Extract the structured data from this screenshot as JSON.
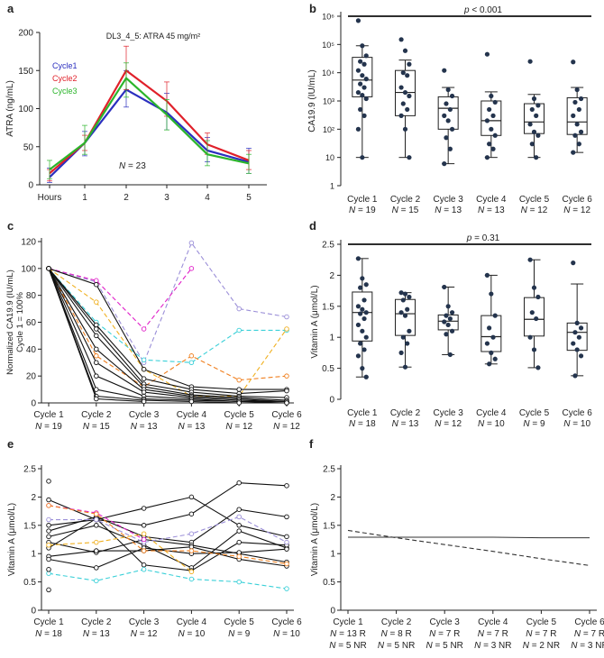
{
  "panel_labels": [
    "a",
    "b",
    "c",
    "d",
    "e",
    "f"
  ],
  "chart_data": [
    {
      "panel": "a",
      "type": "line",
      "title": "DL3_4_5: ATRA 45 mg/m²",
      "ylabel": "ATRA (ng/mL)",
      "xlabel": "",
      "x_ticks": [
        "Hours",
        "1",
        "2",
        "3",
        "4",
        "5"
      ],
      "x_values": [
        0.5,
        1,
        2,
        3,
        4,
        5
      ],
      "ylim": [
        0,
        200
      ],
      "y_ticks": [
        0,
        50,
        100,
        150,
        200
      ],
      "annotation": "N = 23",
      "series": [
        {
          "name": "Cycle1",
          "color": "#2b2fbf",
          "values": [
            10,
            55,
            125,
            95,
            45,
            30
          ],
          "err": [
            [
              3,
              22
            ],
            [
              38,
              70
            ],
            [
              102,
              150
            ],
            [
              72,
              120
            ],
            [
              30,
              62
            ],
            [
              15,
              48
            ]
          ]
        },
        {
          "name": "Cycle2",
          "color": "#e0202a",
          "values": [
            15,
            55,
            150,
            110,
            53,
            32
          ],
          "err": [
            [
              5,
              20
            ],
            [
              45,
              65
            ],
            [
              125,
              182
            ],
            [
              90,
              135
            ],
            [
              40,
              68
            ],
            [
              20,
              45
            ]
          ]
        },
        {
          "name": "Cycle3",
          "color": "#2bb52b",
          "values": [
            20,
            55,
            140,
            92,
            40,
            28
          ],
          "err": [
            [
              8,
              32
            ],
            [
              40,
              78
            ],
            [
              115,
              160
            ],
            [
              72,
              112
            ],
            [
              25,
              58
            ],
            [
              15,
              40
            ]
          ]
        }
      ]
    },
    {
      "panel": "b",
      "type": "box",
      "ylabel": "CA19.9 (IU/mL)",
      "yscale": "log",
      "ylim": [
        1,
        1000000
      ],
      "y_ticks": [
        "1",
        "10",
        "10²",
        "10³",
        "10⁴",
        "10⁵",
        "10⁶"
      ],
      "categories": [
        "Cycle 1",
        "Cycle 2",
        "Cycle 3",
        "Cycle 4",
        "Cycle 5",
        "Cycle 6"
      ],
      "n_labels": [
        "N = 19",
        "N = 15",
        "N = 13",
        "N = 13",
        "N = 12",
        "N = 12"
      ],
      "significance": "p < 0.001",
      "boxes": [
        {
          "min": 10,
          "q1": 1400,
          "median": 5500,
          "q3": 35000,
          "max": 90000
        },
        {
          "min": 10,
          "q1": 300,
          "median": 2000,
          "q3": 12000,
          "max": 28000
        },
        {
          "min": 6,
          "q1": 100,
          "median": 550,
          "q3": 1400,
          "max": 3000
        },
        {
          "min": 10,
          "q1": 60,
          "median": 200,
          "q3": 1000,
          "max": 2100
        },
        {
          "min": 10,
          "q1": 70,
          "median": 180,
          "q3": 800,
          "max": 1700
        },
        {
          "min": 15,
          "q1": 65,
          "median": 180,
          "q3": 1300,
          "max": 3000
        }
      ],
      "points": [
        [
          700000,
          90000,
          40000,
          25000,
          20000,
          12000,
          8000,
          6000,
          4000,
          3000,
          2000,
          1600,
          1200,
          500,
          300,
          100,
          10
        ],
        [
          150000,
          60000,
          20000,
          10000,
          8000,
          3000,
          2000,
          1500,
          800,
          500,
          300,
          100,
          10
        ],
        [
          12000,
          2500,
          1500,
          800,
          500,
          300,
          200,
          100,
          50,
          20,
          6
        ],
        [
          45000,
          1500,
          900,
          500,
          300,
          200,
          100,
          60,
          30,
          20,
          10
        ],
        [
          25000,
          1200,
          700,
          500,
          300,
          150,
          80,
          60,
          30,
          10
        ],
        [
          24000,
          2500,
          1200,
          900,
          500,
          300,
          150,
          80,
          60,
          30,
          15
        ]
      ]
    },
    {
      "panel": "c",
      "type": "line",
      "ylabel": "Normalized CA19.9 (IU/mL) Cycle 1 = 100%",
      "ylabel_lines": [
        "Normalized CA19.9 (IU/mL)",
        "Cycle 1 = 100%"
      ],
      "ylim": [
        0,
        120
      ],
      "y_ticks": [
        0,
        20,
        40,
        60,
        80,
        100,
        120
      ],
      "categories": [
        "Cycle 1",
        "Cycle 2",
        "Cycle 3",
        "Cycle 4",
        "Cycle 5",
        "Cycle 6"
      ],
      "n_labels": [
        "N = 19",
        "N = 15",
        "N = 13",
        "N = 13",
        "N = 12",
        "N = 12"
      ],
      "series": [
        {
          "color": "#9b8fd8",
          "dashed": true,
          "values": [
            100,
            90,
            30,
            119,
            70,
            64
          ]
        },
        {
          "color": "#e020c8",
          "dashed": true,
          "values": [
            100,
            91,
            55,
            100,
            null,
            null
          ]
        },
        {
          "color": "#3ad0d8",
          "dashed": true,
          "values": [
            100,
            60,
            32,
            30,
            54,
            54
          ]
        },
        {
          "color": "#f0b020",
          "dashed": true,
          "values": [
            100,
            75,
            25,
            5,
            5,
            55
          ]
        },
        {
          "color": "#f08020",
          "dashed": true,
          "values": [
            100,
            35,
            12,
            35,
            17,
            20
          ]
        },
        {
          "color": "#111111",
          "dashed": false,
          "values": [
            100,
            88,
            25,
            12,
            10,
            10
          ]
        },
        {
          "color": "#111111",
          "dashed": false,
          "values": [
            100,
            58,
            18,
            10,
            7,
            9
          ]
        },
        {
          "color": "#111111",
          "dashed": false,
          "values": [
            100,
            55,
            14,
            8,
            5,
            4
          ]
        },
        {
          "color": "#111111",
          "dashed": false,
          "values": [
            100,
            50,
            12,
            6,
            4,
            2
          ]
        },
        {
          "color": "#111111",
          "dashed": false,
          "values": [
            100,
            40,
            10,
            5,
            3,
            1
          ]
        },
        {
          "color": "#111111",
          "dashed": false,
          "values": [
            100,
            30,
            8,
            4,
            2,
            1
          ]
        },
        {
          "color": "#111111",
          "dashed": false,
          "values": [
            100,
            20,
            5,
            3,
            1,
            1
          ]
        },
        {
          "color": "#111111",
          "dashed": false,
          "values": [
            100,
            10,
            3,
            2,
            1,
            0
          ]
        },
        {
          "color": "#111111",
          "dashed": false,
          "values": [
            100,
            5,
            2,
            1,
            0,
            0
          ]
        },
        {
          "color": "#111111",
          "dashed": false,
          "values": [
            100,
            3,
            1,
            null,
            null,
            null
          ]
        }
      ]
    },
    {
      "panel": "d",
      "type": "box",
      "ylabel": "Vitamin A (μmol/L)",
      "ylim": [
        0,
        2.5
      ],
      "y_ticks": [
        0,
        0.5,
        1,
        1.5,
        2,
        2.5
      ],
      "categories": [
        "Cycle 1",
        "Cycle 2",
        "Cycle 3",
        "Cycle 4",
        "Cycle 5",
        "Cycle 6"
      ],
      "n_labels": [
        "N = 18",
        "N = 13",
        "N = 12",
        "N = 10",
        "N = 9",
        "N = 10"
      ],
      "significance": "p = 0.31",
      "boxes": [
        {
          "min": 0.36,
          "q1": 0.94,
          "median": 1.4,
          "q3": 1.73,
          "max": 2.27
        },
        {
          "min": 0.52,
          "q1": 1.03,
          "median": 1.38,
          "q3": 1.61,
          "max": 1.72
        },
        {
          "min": 0.72,
          "q1": 1.12,
          "median": 1.26,
          "q3": 1.36,
          "max": 1.81
        },
        {
          "min": 0.57,
          "q1": 0.77,
          "median": 1.01,
          "q3": 1.35,
          "max": 2.0
        },
        {
          "min": 0.51,
          "q1": 1.02,
          "median": 1.29,
          "q3": 1.64,
          "max": 2.25
        },
        {
          "min": 0.38,
          "q1": 0.79,
          "median": 1.08,
          "q3": 1.23,
          "max": 1.86
        }
      ],
      "points": [
        [
          2.27,
          1.95,
          1.85,
          1.8,
          1.6,
          1.5,
          1.45,
          1.4,
          1.38,
          1.3,
          1.2,
          1.1,
          1.0,
          0.9,
          0.8,
          0.7,
          0.5,
          0.36
        ],
        [
          1.72,
          1.7,
          1.65,
          1.6,
          1.45,
          1.4,
          1.35,
          1.1,
          1.0,
          0.9,
          0.75,
          0.52
        ],
        [
          1.81,
          1.5,
          1.4,
          1.35,
          1.3,
          1.25,
          1.2,
          1.1,
          1.05,
          0.72
        ],
        [
          2.0,
          1.7,
          1.35,
          1.15,
          1.0,
          0.9,
          0.75,
          0.65,
          0.57
        ],
        [
          2.25,
          1.8,
          1.65,
          1.4,
          1.3,
          1.0,
          0.8,
          0.51
        ],
        [
          2.2,
          1.23,
          1.15,
          1.08,
          1.0,
          0.9,
          0.8,
          0.7,
          0.38
        ]
      ]
    },
    {
      "panel": "e",
      "type": "line",
      "ylabel": "Vitamin A (μmol/L)",
      "ylim": [
        0,
        2.5
      ],
      "y_ticks": [
        0,
        0.5,
        1,
        1.5,
        2,
        2.5
      ],
      "categories": [
        "Cycle 1",
        "Cycle 2",
        "Cycle 3",
        "Cycle 4",
        "Cycle 5",
        "Cycle 6"
      ],
      "n_labels": [
        "N = 18",
        "N = 13",
        "N = 12",
        "N = 10",
        "N = 9",
        "N = 10"
      ],
      "series": [
        {
          "color": "#111111",
          "dashed": false,
          "values": [
            1.95,
            1.6,
            1.8,
            2.0,
            1.5,
            1.3
          ]
        },
        {
          "color": "#111111",
          "dashed": false,
          "values": [
            1.5,
            1.6,
            1.5,
            1.7,
            2.25,
            2.2
          ]
        },
        {
          "color": "#111111",
          "dashed": false,
          "values": [
            1.4,
            1.65,
            1.3,
            1.2,
            1.78,
            1.65
          ]
        },
        {
          "color": "#111111",
          "dashed": false,
          "values": [
            1.3,
            1.5,
            1.15,
            0.75,
            1.4,
            1.1
          ]
        },
        {
          "color": "#111111",
          "dashed": false,
          "values": [
            1.2,
            1.02,
            1.25,
            1.15,
            1.0,
            0.85
          ]
        },
        {
          "color": "#111111",
          "dashed": false,
          "values": [
            1.1,
            1.62,
            0.8,
            0.7,
            1.2,
            1.15
          ]
        },
        {
          "color": "#111111",
          "dashed": false,
          "values": [
            0.95,
            1.05,
            1.05,
            1.12,
            0.9,
            0.78
          ]
        },
        {
          "color": "#111111",
          "dashed": false,
          "values": [
            0.9,
            0.75,
            1.1,
            1.0,
            1.02,
            1.08
          ]
        },
        {
          "color": "#9b8fd8",
          "dashed": true,
          "values": [
            1.6,
            1.6,
            1.2,
            1.35,
            1.65,
            1.2
          ]
        },
        {
          "color": "#e020c8",
          "dashed": true,
          "values": [
            1.85,
            1.72,
            1.25,
            null,
            null,
            null
          ]
        },
        {
          "color": "#3ad0d8",
          "dashed": true,
          "values": [
            0.65,
            0.52,
            0.72,
            0.55,
            0.5,
            0.38
          ]
        },
        {
          "color": "#f0b020",
          "dashed": true,
          "values": [
            1.15,
            1.2,
            1.35,
            0.68,
            null,
            null
          ]
        },
        {
          "color": "#f08020",
          "dashed": true,
          "values": [
            1.85,
            1.7,
            1.05,
            1.05,
            0.95,
            0.82
          ]
        }
      ],
      "extra_points": [
        2.28,
        0.36,
        0.72
      ]
    },
    {
      "panel": "f",
      "type": "line",
      "ylabel": "Vitamin A (μmol/L)",
      "ylim": [
        0,
        2.5
      ],
      "y_ticks": [
        0,
        0.5,
        1,
        1.5,
        2,
        2.5
      ],
      "categories": [
        "Cycle 1",
        "Cycle 2",
        "Cycle 3",
        "Cycle 4",
        "Cycle 5",
        "Cycle 6"
      ],
      "r_labels": [
        "N = 13 R",
        "N = 8 R",
        "N = 7 R",
        "N = 7 R",
        "N = 7 R",
        "N = 7 R"
      ],
      "nr_labels": [
        "N = 5 NR",
        "N = 5 NR",
        "N = 5 NR",
        "N = 3 NR",
        "N = 2 NR",
        "N = 3 NR"
      ],
      "series": [
        {
          "name": "R",
          "color": "#333333",
          "dashed": false,
          "values": [
            1.29,
            1.29,
            1.29,
            1.29,
            1.28,
            1.28
          ]
        },
        {
          "name": "NR",
          "color": "#333333",
          "dashed": true,
          "values": [
            1.41,
            1.28,
            1.16,
            1.04,
            0.91,
            0.79
          ]
        }
      ]
    }
  ]
}
